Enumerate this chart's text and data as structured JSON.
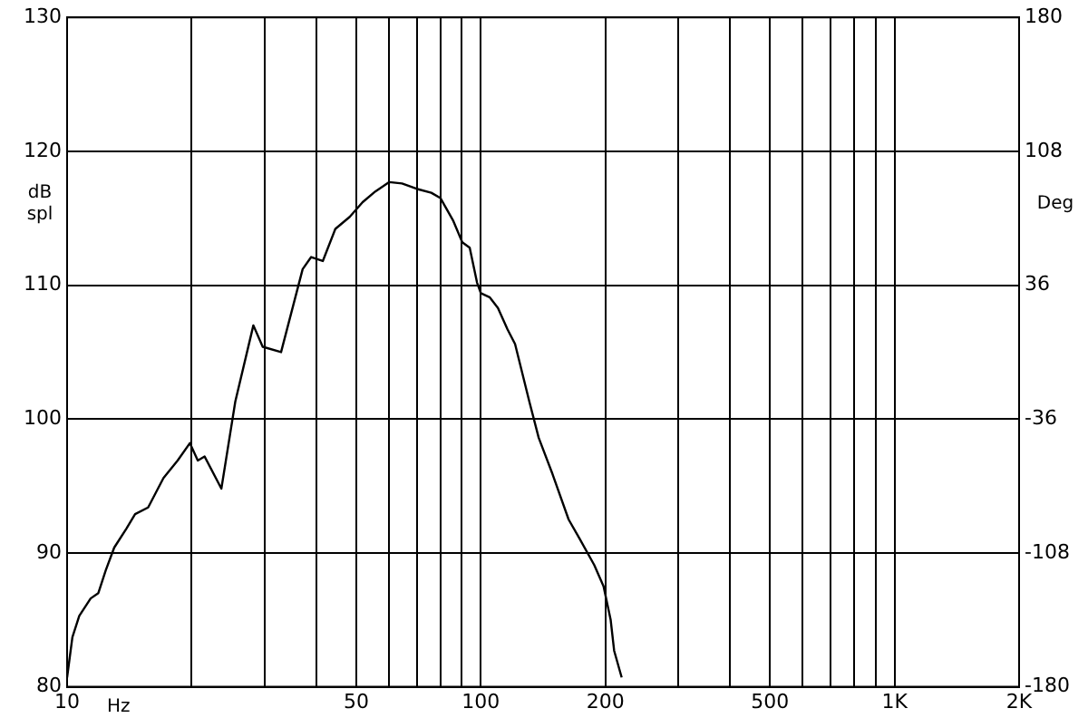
{
  "chart_data": {
    "type": "line",
    "xlabel": "Hz",
    "ylabel": "dB spl",
    "y2label": "Deg",
    "log": "x",
    "grid": true,
    "legend": false,
    "marker": "none",
    "line_style": "solid",
    "xlim": [
      10,
      2000
    ],
    "xticks": [
      10,
      {
        "value": 20,
        "label": null
      },
      {
        "value": 30,
        "label": null
      },
      {
        "value": 40,
        "label": null
      },
      50,
      {
        "value": 60,
        "label": null
      },
      {
        "value": 70,
        "label": null
      },
      {
        "value": 80,
        "label": null
      },
      {
        "value": 90,
        "label": null
      },
      100,
      200,
      {
        "value": 300,
        "label": null
      },
      {
        "value": 400,
        "label": null
      },
      500,
      {
        "value": 600,
        "label": null
      },
      {
        "value": 700,
        "label": null
      },
      {
        "value": 800,
        "label": null
      },
      {
        "value": 900,
        "label": null
      },
      {
        "value": 1000,
        "label": "1K"
      },
      {
        "value": 2000,
        "label": "2K"
      }
    ],
    "ylim": [
      80,
      130
    ],
    "yticks": [
      80,
      90,
      100,
      110,
      120,
      130
    ],
    "y2lim": [
      -180,
      180
    ],
    "y2ticks": [
      -180,
      -108,
      -36,
      36,
      108,
      180
    ],
    "series": [
      {
        "color": "#000000",
        "x": [
          10,
          10.3,
          10.7,
          11.4,
          11.9,
          12.4,
          13,
          13.9,
          14.6,
          15.7,
          17.1,
          18.5,
          19.8,
          20.7,
          21.5,
          23.6,
          25.5,
          28.2,
          29.7,
          32.9,
          37.1,
          38.9,
          41.5,
          44.5,
          48.2,
          51.8,
          55.6,
          60.1,
          64.5,
          69.9,
          75.9,
          79.9,
          85.8,
          90.2,
          94,
          97.9,
          100,
          105,
          110,
          116,
          121,
          131,
          138,
          149,
          163,
          173,
          188,
          198,
          206,
          210,
          219
        ],
        "values": [
          80.7,
          83.7,
          85.3,
          86.6,
          87,
          88.7,
          90.4,
          91.8,
          92.9,
          93.4,
          95.6,
          96.9,
          98.2,
          96.9,
          97.2,
          94.8,
          101.3,
          107,
          105.4,
          105,
          111.2,
          112.1,
          111.8,
          114.2,
          115.1,
          116.2,
          117,
          117.7,
          117.6,
          117.2,
          116.9,
          116.5,
          114.8,
          113.2,
          112.8,
          110.2,
          109.4,
          109.1,
          108.3,
          106.7,
          105.6,
          101.3,
          98.6,
          95.9,
          92.5,
          91.1,
          89.1,
          87.5,
          85,
          82.7,
          80.7
        ]
      }
    ]
  }
}
